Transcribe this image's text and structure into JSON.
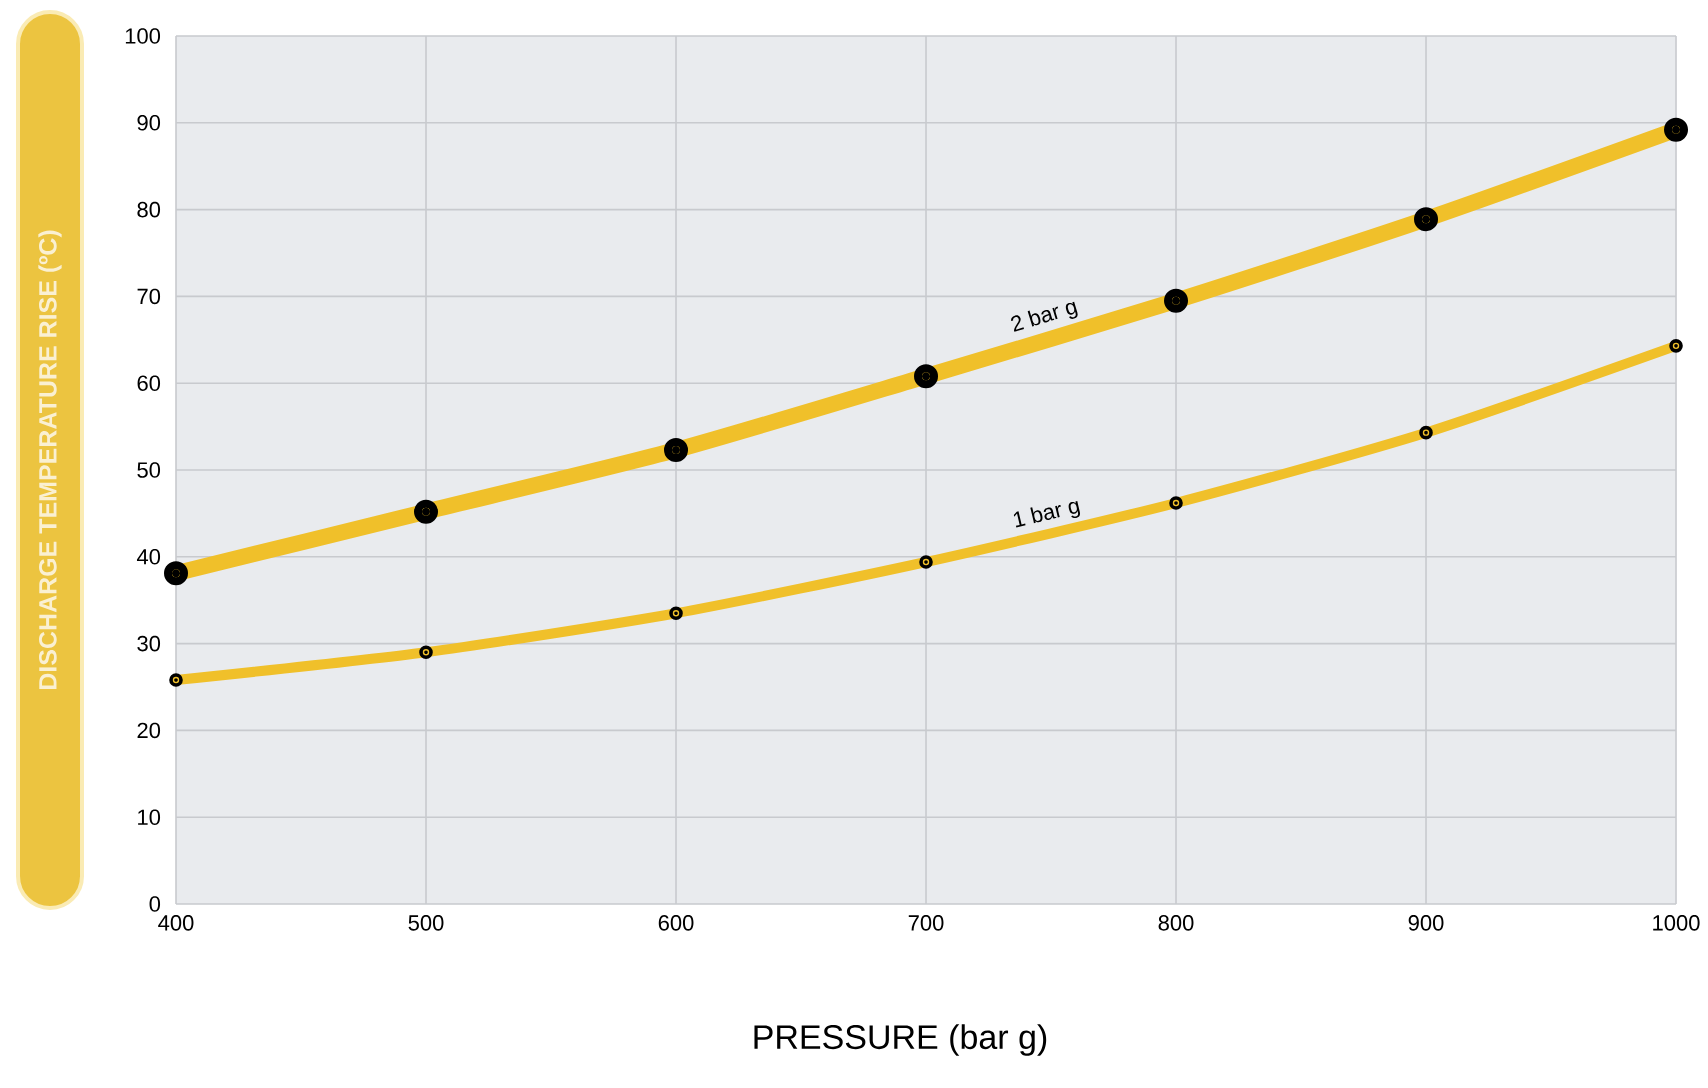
{
  "chart_data": {
    "type": "line",
    "xlabel": "PRESSURE (bar g)",
    "ylabel": "DISCHARGE TEMPERATURE RISE (ºC)",
    "x": [
      400,
      500,
      600,
      700,
      800,
      900,
      1000
    ],
    "series": [
      {
        "name": "2 bar g",
        "color": "#f0c02a",
        "values": [
          38.1,
          45.2,
          52.3,
          60.8,
          69.5,
          78.9,
          89.2
        ]
      },
      {
        "name": "1 bar g",
        "color": "#f0c02a",
        "values": [
          25.8,
          29.0,
          33.5,
          39.4,
          46.2,
          54.3,
          64.3
        ]
      }
    ],
    "xlim": [
      400,
      1000
    ],
    "xticks": [
      400,
      500,
      600,
      700,
      800,
      900,
      1000
    ],
    "ylim": [
      0,
      100
    ],
    "yticks": [
      0,
      10,
      20,
      30,
      40,
      50,
      60,
      70,
      80,
      90,
      100
    ],
    "grid": true,
    "marker": "circle",
    "line_style": "solid"
  }
}
